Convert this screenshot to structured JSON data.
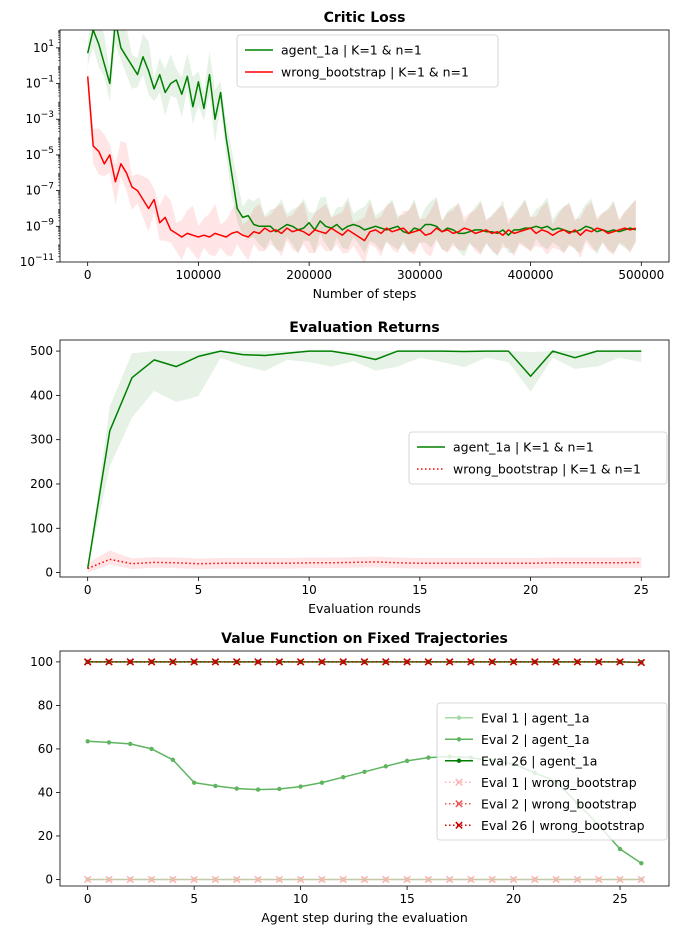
{
  "chart_data": [
    {
      "type": "line",
      "title": "Critic Loss",
      "xlabel": "Number of steps",
      "ylabel": "",
      "yscale": "log",
      "xlim": [
        -25000,
        525000
      ],
      "ylim_exponents": [
        -11,
        2
      ],
      "xticks": [
        0,
        100000,
        200000,
        300000,
        400000,
        500000
      ],
      "xtick_labels": [
        "0",
        "100000",
        "200000",
        "300000",
        "400000",
        "500000"
      ],
      "yticks_exponents": [
        -11,
        -9,
        -7,
        -5,
        -3,
        -1,
        1
      ],
      "ytick_labels": [
        "10",
        "10",
        "10",
        "10",
        "10",
        "10",
        "10"
      ],
      "ytick_sup": [
        "−11",
        "−9",
        "−7",
        "−5",
        "−3",
        "−1",
        "1"
      ],
      "legend_position": "top-center",
      "series": [
        {
          "name": "agent_1a | K=1 & n=1",
          "color": "#008000",
          "style": "solid",
          "x": [
            0,
            5000,
            10000,
            15000,
            20000,
            25000,
            30000,
            35000,
            40000,
            45000,
            50000,
            55000,
            60000,
            65000,
            70000,
            75000,
            80000,
            85000,
            90000,
            95000,
            100000,
            105000,
            110000,
            115000,
            120000,
            125000,
            130000,
            135000,
            140000,
            145000,
            150000,
            155000,
            160000,
            165000,
            170000,
            175000,
            180000,
            185000,
            190000,
            195000,
            200000,
            205000,
            210000,
            215000,
            220000,
            225000,
            230000,
            235000,
            240000,
            245000,
            250000,
            255000,
            260000,
            265000,
            270000,
            275000,
            280000,
            285000,
            290000,
            295000,
            300000,
            305000,
            310000,
            315000,
            320000,
            325000,
            330000,
            335000,
            340000,
            345000,
            350000,
            355000,
            360000,
            365000,
            370000,
            375000,
            380000,
            385000,
            390000,
            395000,
            400000,
            405000,
            410000,
            415000,
            420000,
            425000,
            430000,
            435000,
            440000,
            445000,
            450000,
            455000,
            460000,
            465000,
            470000,
            475000,
            480000,
            485000,
            490000,
            495000
          ],
          "y_log10": [
            0.7,
            2,
            1.2,
            0.1,
            -1,
            2.5,
            1,
            0.5,
            0,
            -0.5,
            0.5,
            -0.3,
            -1.3,
            -0.5,
            -1.5,
            -1,
            -0.8,
            -1.6,
            -0.6,
            -2.3,
            -0.9,
            -2.4,
            -0.5,
            -3,
            -1.5,
            -4,
            -6,
            -8,
            -8.5,
            -8.4,
            -8.9,
            -9,
            -9,
            -9,
            -9.3,
            -9.1,
            -8.9,
            -9,
            -9.2,
            -9.1,
            -8.8,
            -9.2,
            -8.7,
            -9,
            -9.1,
            -8.9,
            -9.2,
            -9,
            -8.9,
            -9,
            -9.2,
            -9.1,
            -9,
            -9.1,
            -9.2,
            -9.1,
            -9,
            -9.3,
            -9.4,
            -9.1,
            -9.2,
            -8.9,
            -8.9,
            -9,
            -9.3,
            -9.1,
            -9.2,
            -9.4,
            -9.4,
            -9.3,
            -9.2,
            -9.2,
            -9.3,
            -9.3,
            -9.4,
            -9.2,
            -9.5,
            -9.2,
            -9.2,
            -9.1,
            -9.1,
            -9,
            -9.1,
            -9,
            -9.2,
            -9.1,
            -9.2,
            -9.3,
            -9.3,
            -9.2,
            -9,
            -9.1,
            -9.3,
            -9.2,
            -9.3,
            -9.2,
            -9.3,
            -9.2,
            -9.1,
            -9.2
          ]
        },
        {
          "name": "wrong_bootstrap | K=1 & n=1",
          "color": "#ff0000",
          "style": "solid",
          "x": [
            0,
            5000,
            10000,
            15000,
            20000,
            25000,
            30000,
            35000,
            40000,
            45000,
            50000,
            55000,
            60000,
            65000,
            70000,
            75000,
            80000,
            85000,
            90000,
            95000,
            100000,
            105000,
            110000,
            115000,
            120000,
            125000,
            130000,
            135000,
            140000,
            145000,
            150000,
            155000,
            160000,
            165000,
            170000,
            175000,
            180000,
            185000,
            190000,
            195000,
            200000,
            205000,
            210000,
            215000,
            220000,
            225000,
            230000,
            235000,
            240000,
            245000,
            250000,
            255000,
            260000,
            265000,
            270000,
            275000,
            280000,
            285000,
            290000,
            295000,
            300000,
            305000,
            310000,
            315000,
            320000,
            325000,
            330000,
            335000,
            340000,
            345000,
            350000,
            355000,
            360000,
            365000,
            370000,
            375000,
            380000,
            385000,
            390000,
            395000,
            400000,
            405000,
            410000,
            415000,
            420000,
            425000,
            430000,
            435000,
            440000,
            445000,
            450000,
            455000,
            460000,
            465000,
            470000,
            475000,
            480000,
            485000,
            490000,
            495000
          ],
          "y_log10": [
            -0.6,
            -4.5,
            -4.8,
            -5.5,
            -5,
            -6.5,
            -5.5,
            -6,
            -6.8,
            -7,
            -7.5,
            -8,
            -7.5,
            -8.8,
            -8.5,
            -9.2,
            -9.4,
            -9.6,
            -9.4,
            -9.5,
            -9.6,
            -9.5,
            -9.6,
            -9.4,
            -9.5,
            -9.6,
            -9.4,
            -9.3,
            -9.5,
            -9.6,
            -9.3,
            -9.4,
            -9.1,
            -9.3,
            -9.2,
            -9.4,
            -9.1,
            -9.3,
            -9.2,
            -9.3,
            -9.5,
            -9.2,
            -9.3,
            -9.4,
            -9.1,
            -9.3,
            -9.5,
            -9.2,
            -9.4,
            -9.6,
            -9.8,
            -9.3,
            -9.2,
            -9.4,
            -9.1,
            -9.3,
            -9.2,
            -9.1,
            -9.4,
            -9.3,
            -9.2,
            -9.5,
            -9.4,
            -9.1,
            -9.3,
            -9.2,
            -9.4,
            -9.3,
            -9.1,
            -9.2,
            -9.4,
            -9.3,
            -9.2,
            -9.4,
            -9.3,
            -9.5,
            -9.2,
            -9.4,
            -9.3,
            -9.2,
            -9.1,
            -9.4,
            -9.2,
            -9.3,
            -9.5,
            -9.3,
            -9.2,
            -9.4,
            -9.2,
            -9.5,
            -9.2,
            -9.3,
            -9.1,
            -9.2,
            -9.4,
            -9.3,
            -9.2,
            -9.1,
            -9.2,
            -9.1
          ]
        }
      ]
    },
    {
      "type": "line",
      "title": "Evaluation Returns",
      "xlabel": "Evaluation rounds",
      "ylabel": "",
      "xlim": [
        -1.25,
        26.25
      ],
      "ylim": [
        -10,
        525
      ],
      "xticks": [
        0,
        5,
        10,
        15,
        20,
        25
      ],
      "yticks": [
        0,
        100,
        200,
        300,
        400,
        500
      ],
      "legend_position": "center-right",
      "series": [
        {
          "name": "agent_1a | K=1 & n=1",
          "color": "#008000",
          "style": "solid",
          "x": [
            0,
            1,
            2,
            3,
            4,
            5,
            6,
            7,
            8,
            9,
            10,
            11,
            12,
            13,
            14,
            15,
            16,
            17,
            18,
            19,
            20,
            21,
            22,
            23,
            24,
            25
          ],
          "values": [
            9,
            320,
            440,
            480,
            465,
            488,
            500,
            492,
            490,
            495,
            500,
            500,
            492,
            481,
            500,
            500,
            500,
            499,
            500,
            500,
            443,
            500,
            485,
            500,
            500,
            500
          ]
        },
        {
          "name": "wrong_bootstrap | K=1 & n=1",
          "color": "#ff0000",
          "style": "dotted",
          "x": [
            0,
            1,
            2,
            3,
            4,
            5,
            6,
            7,
            8,
            9,
            10,
            11,
            12,
            13,
            14,
            15,
            16,
            17,
            18,
            19,
            20,
            21,
            22,
            23,
            24,
            25
          ],
          "values": [
            9,
            30,
            20,
            23,
            22,
            20,
            21,
            21,
            21,
            21,
            22,
            22,
            23,
            24,
            22,
            21,
            21,
            21,
            21,
            21,
            21,
            22,
            22,
            22,
            22,
            23
          ]
        }
      ]
    },
    {
      "type": "line",
      "title": "Value Function on Fixed Trajectories",
      "xlabel": "Agent step during the evaluation",
      "ylabel": "",
      "xlim": [
        -1.3,
        27.3
      ],
      "ylim": [
        -3,
        105
      ],
      "xticks": [
        0,
        5,
        10,
        15,
        20,
        25
      ],
      "yticks": [
        0,
        20,
        40,
        60,
        80,
        100
      ],
      "legend_position": "right",
      "series": [
        {
          "name": "Eval 1 | agent_1a",
          "color": "#a6d8a6",
          "style": "solid",
          "marker": "dot",
          "x": [
            0,
            1,
            2,
            3,
            4,
            5,
            6,
            7,
            8,
            9,
            10,
            11,
            12,
            13,
            14,
            15,
            16,
            17,
            18,
            19,
            20,
            21,
            22,
            23,
            24,
            25,
            26
          ],
          "values": [
            0,
            0,
            0,
            0,
            0,
            0,
            0,
            0,
            0,
            0,
            0,
            0,
            0,
            0,
            0,
            0,
            0,
            0,
            0,
            0,
            0,
            0,
            0,
            0,
            0,
            0,
            0
          ]
        },
        {
          "name": "Eval 2 | agent_1a",
          "color": "#5fb55f",
          "style": "solid",
          "marker": "dot",
          "x": [
            0,
            1,
            2,
            3,
            4,
            5,
            6,
            7,
            8,
            9,
            10,
            11,
            12,
            13,
            14,
            15,
            16,
            17,
            18,
            19,
            20,
            21,
            22,
            23,
            24,
            25,
            26
          ],
          "values": [
            63.5,
            63,
            62.3,
            60,
            55,
            44.5,
            43,
            41.8,
            41.3,
            41.6,
            42.7,
            44.5,
            47,
            49.5,
            52,
            54.5,
            56,
            56.5,
            56,
            54.5,
            53,
            49,
            45,
            35,
            25,
            14,
            7.5
          ]
        },
        {
          "name": "Eval 26 | agent_1a",
          "color": "#007a00",
          "style": "solid",
          "marker": "dot",
          "x": [
            0,
            1,
            2,
            3,
            4,
            5,
            6,
            7,
            8,
            9,
            10,
            11,
            12,
            13,
            14,
            15,
            16,
            17,
            18,
            19,
            20,
            21,
            22,
            23,
            24,
            25,
            26
          ],
          "values": [
            100,
            100,
            100,
            100,
            100,
            100,
            100,
            100,
            100,
            100,
            100,
            100,
            100,
            100,
            100,
            100,
            100,
            100,
            100,
            100,
            100,
            100,
            100,
            100,
            100,
            100,
            99.8
          ]
        },
        {
          "name": "Eval 1 | wrong_bootstrap",
          "color": "#ffb3b3",
          "style": "dotted",
          "marker": "x",
          "x": [
            0,
            1,
            2,
            3,
            4,
            5,
            6,
            7,
            8,
            9,
            10,
            11,
            12,
            13,
            14,
            15,
            16,
            17,
            18,
            19,
            20,
            21,
            22,
            23,
            24,
            25,
            26
          ],
          "values": [
            0,
            0,
            0,
            0,
            0,
            0,
            0,
            0,
            0,
            0,
            0,
            0,
            0,
            0,
            0,
            0,
            0,
            0,
            0,
            0,
            0,
            0,
            0,
            0,
            0,
            0,
            0
          ]
        },
        {
          "name": "Eval 2 | wrong_bootstrap",
          "color": "#ee5555",
          "style": "dotted",
          "marker": "x",
          "x": [
            0,
            1,
            2,
            3,
            4,
            5,
            6,
            7,
            8,
            9,
            10,
            11,
            12,
            13,
            14,
            15,
            16,
            17,
            18,
            19,
            20,
            21,
            22,
            23,
            24,
            25,
            26
          ],
          "values": [
            100,
            100,
            100,
            100,
            100,
            100,
            100,
            100,
            100,
            100,
            100,
            100,
            100,
            100,
            100,
            100,
            100,
            100,
            100,
            100,
            100,
            100,
            100,
            100,
            100,
            100,
            99.7
          ]
        },
        {
          "name": "Eval 26 | wrong_bootstrap",
          "color": "#cc0000",
          "style": "dotted",
          "marker": "x",
          "x": [
            0,
            1,
            2,
            3,
            4,
            5,
            6,
            7,
            8,
            9,
            10,
            11,
            12,
            13,
            14,
            15,
            16,
            17,
            18,
            19,
            20,
            21,
            22,
            23,
            24,
            25,
            26
          ],
          "values": [
            100,
            100,
            100,
            100,
            100,
            100,
            100,
            100,
            100,
            100,
            100,
            100,
            100,
            100,
            100,
            100,
            100,
            100,
            100,
            100,
            100,
            100,
            100,
            100,
            100,
            100,
            99.7
          ]
        }
      ]
    }
  ]
}
